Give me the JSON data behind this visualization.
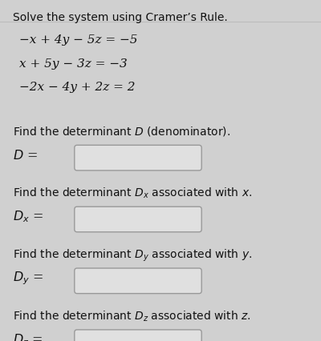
{
  "title": "Solve the system using Cramer’s Rule.",
  "equations": [
    "−x + 4y − 5z = −5",
    "x + 5y − 3z = −3",
    "−2x − 4y + 2z = 2"
  ],
  "sections": [
    {
      "label": "Find the determinant $D$ (denominator).",
      "var_label": "$D$ ="
    },
    {
      "label": "Find the determinant $D_x$ associated with $x$.",
      "var_label": "$D_x$ ="
    },
    {
      "label": "Find the determinant $D_y$ associated with $y$.",
      "var_label": "$D_y$ ="
    },
    {
      "label": "Find the determinant $D_z$ associated with $z$.",
      "var_label": "$D_z$ ="
    }
  ],
  "bg_color": "#d0d0d0",
  "text_color": "#111111",
  "box_color": "#e0e0e0",
  "box_border": "#999999",
  "font_size_title": 10.0,
  "font_size_eq": 11.0,
  "font_size_section": 10.0,
  "font_size_var": 11.5,
  "title_line_color": "#bbbbbb"
}
